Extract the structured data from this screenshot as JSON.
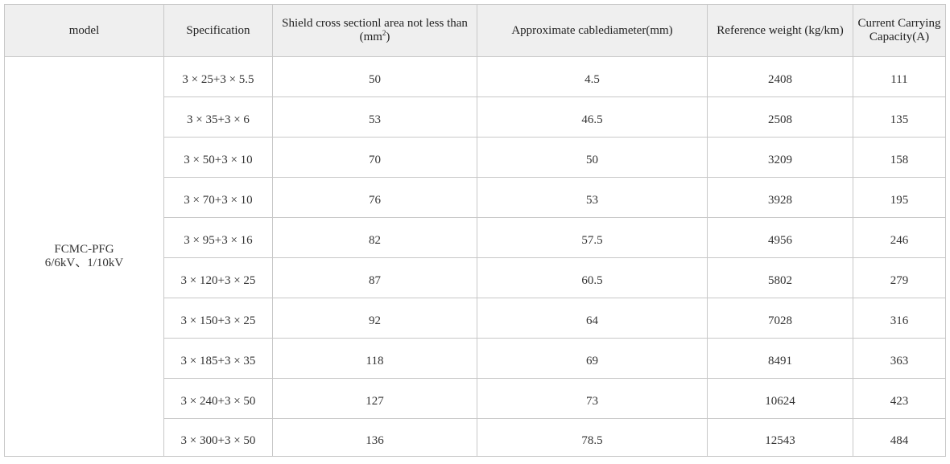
{
  "table": {
    "headers": {
      "model": "model",
      "specification": "Specification",
      "shield_line1": "Shield cross sectionl area not less than",
      "shield_line2_prefix": "(mm",
      "shield_line2_sup": "2",
      "shield_line2_suffix": ")",
      "diameter": "Approximate cablediameter(mm)",
      "weight": "Reference weight (kg/km)",
      "current_line1": "Current Carrying",
      "current_line2": "Capacity(A)"
    },
    "model": {
      "line1": "FCMC-PFG",
      "line2": "6/6kV、1/10kV"
    },
    "rows": [
      {
        "spec": "3 × 25+3 × 5.5",
        "shield": "50",
        "diameter": "4.5",
        "weight": "2408",
        "current": "111"
      },
      {
        "spec": "3 × 35+3 × 6",
        "shield": "53",
        "diameter": "46.5",
        "weight": "2508",
        "current": "135"
      },
      {
        "spec": "3 × 50+3 × 10",
        "shield": "70",
        "diameter": "50",
        "weight": "3209",
        "current": "158"
      },
      {
        "spec": "3 × 70+3 × 10",
        "shield": "76",
        "diameter": "53",
        "weight": "3928",
        "current": "195"
      },
      {
        "spec": "3 × 95+3 × 16",
        "shield": "82",
        "diameter": "57.5",
        "weight": "4956",
        "current": "246"
      },
      {
        "spec": "3 × 120+3 × 25",
        "shield": "87",
        "diameter": "60.5",
        "weight": "5802",
        "current": "279"
      },
      {
        "spec": "3 × 150+3 × 25",
        "shield": "92",
        "diameter": "64",
        "weight": "7028",
        "current": "316"
      },
      {
        "spec": "3 × 185+3 × 35",
        "shield": "118",
        "diameter": "69",
        "weight": "8491",
        "current": "363"
      },
      {
        "spec": "3 × 240+3 × 50",
        "shield": "127",
        "diameter": "73",
        "weight": "10624",
        "current": "423"
      },
      {
        "spec": "3 × 300+3 × 50",
        "shield": "136",
        "diameter": "78.5",
        "weight": "12543",
        "current": "484"
      }
    ]
  }
}
